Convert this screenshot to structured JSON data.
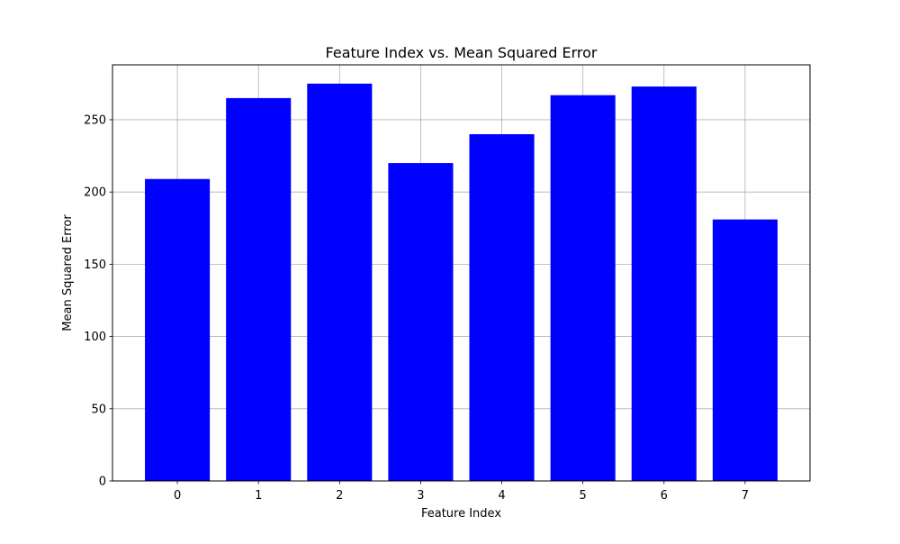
{
  "chart_data": {
    "type": "bar",
    "title": "Feature Index vs. Mean Squared Error",
    "xlabel": "Feature Index",
    "ylabel": "Mean Squared Error",
    "categories": [
      "0",
      "1",
      "2",
      "3",
      "4",
      "5",
      "6",
      "7"
    ],
    "values": [
      209,
      265,
      275,
      220,
      240,
      267,
      273,
      181
    ],
    "y_ticks": [
      0,
      50,
      100,
      150,
      200,
      250
    ],
    "ylim": [
      0,
      288
    ],
    "xlim": [
      -0.8,
      7.8
    ],
    "grid": true,
    "bar_color": "#0000ff",
    "grid_color": "#b0b0b0"
  }
}
